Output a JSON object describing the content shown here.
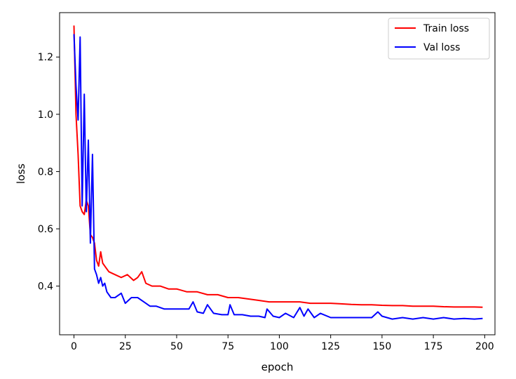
{
  "chart_data": {
    "type": "line",
    "title": "",
    "xlabel": "epoch",
    "ylabel": "loss",
    "xlim": [
      -7,
      205
    ],
    "ylim": [
      0.23,
      1.355
    ],
    "xticks": [
      0,
      25,
      50,
      75,
      100,
      125,
      150,
      175,
      200
    ],
    "yticks": [
      0.4,
      0.6,
      0.8,
      1.0,
      1.2
    ],
    "ytick_labels": [
      "0.4",
      "0.6",
      "0.8",
      "1.0",
      "1.2"
    ],
    "grid": false,
    "legend_position": "top-right",
    "series": [
      {
        "name": "Train loss",
        "color": "#ff0000",
        "x": [
          0,
          1,
          2,
          3,
          4,
          5,
          6,
          7,
          8,
          9,
          10,
          11,
          12,
          13,
          14,
          15,
          17,
          20,
          23,
          26,
          29,
          31,
          33,
          35,
          38,
          42,
          46,
          50,
          55,
          60,
          65,
          70,
          75,
          80,
          85,
          90,
          95,
          100,
          105,
          110,
          115,
          120,
          125,
          130,
          135,
          140,
          145,
          150,
          155,
          160,
          165,
          170,
          175,
          180,
          185,
          190,
          195,
          199
        ],
        "y": [
          1.31,
          1.0,
          0.86,
          0.68,
          0.66,
          0.65,
          0.7,
          0.68,
          0.58,
          0.57,
          0.55,
          0.49,
          0.47,
          0.52,
          0.48,
          0.47,
          0.45,
          0.44,
          0.43,
          0.44,
          0.42,
          0.43,
          0.45,
          0.41,
          0.4,
          0.4,
          0.39,
          0.39,
          0.38,
          0.38,
          0.37,
          0.37,
          0.36,
          0.36,
          0.355,
          0.35,
          0.345,
          0.345,
          0.345,
          0.345,
          0.34,
          0.34,
          0.34,
          0.338,
          0.336,
          0.335,
          0.335,
          0.333,
          0.332,
          0.332,
          0.33,
          0.33,
          0.33,
          0.328,
          0.327,
          0.327,
          0.327,
          0.326
        ]
      },
      {
        "name": "Val loss",
        "color": "#0000ff",
        "x": [
          0,
          1,
          2,
          3,
          4,
          5,
          6,
          7,
          8,
          9,
          10,
          11,
          12,
          13,
          14,
          15,
          16,
          18,
          20,
          23,
          25,
          28,
          31,
          34,
          37,
          40,
          44,
          48,
          52,
          56,
          58,
          60,
          63,
          65,
          68,
          72,
          75,
          76,
          78,
          82,
          86,
          90,
          93,
          94,
          97,
          100,
          103,
          107,
          110,
          112,
          114,
          117,
          120,
          125,
          130,
          135,
          140,
          145,
          148,
          150,
          155,
          160,
          165,
          170,
          175,
          180,
          185,
          190,
          195,
          199
        ],
        "y": [
          1.28,
          1.1,
          0.98,
          1.27,
          0.68,
          1.07,
          0.66,
          0.91,
          0.55,
          0.86,
          0.46,
          0.44,
          0.41,
          0.43,
          0.4,
          0.41,
          0.38,
          0.36,
          0.36,
          0.375,
          0.34,
          0.36,
          0.36,
          0.345,
          0.33,
          0.33,
          0.32,
          0.32,
          0.32,
          0.32,
          0.345,
          0.31,
          0.305,
          0.335,
          0.305,
          0.3,
          0.3,
          0.335,
          0.3,
          0.3,
          0.295,
          0.295,
          0.29,
          0.32,
          0.295,
          0.29,
          0.305,
          0.29,
          0.325,
          0.295,
          0.32,
          0.29,
          0.305,
          0.29,
          0.29,
          0.29,
          0.29,
          0.29,
          0.31,
          0.295,
          0.285,
          0.29,
          0.285,
          0.29,
          0.285,
          0.29,
          0.285,
          0.287,
          0.285,
          0.287
        ]
      }
    ]
  }
}
